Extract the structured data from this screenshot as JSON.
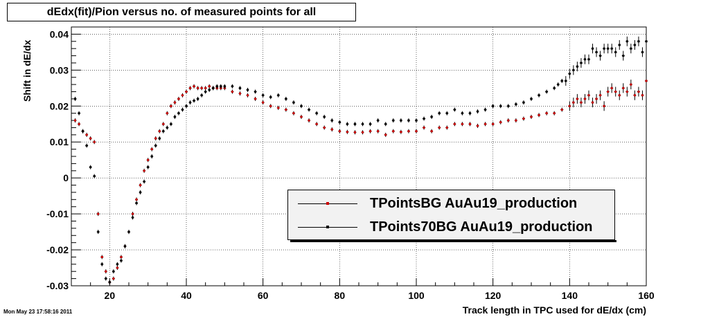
{
  "title": "dEdx(fit)/Pion versus no. of measured points for all",
  "timestamp": "Mon May 23 17:58:16 2011",
  "chart_data": {
    "type": "scatter",
    "title": "dEdx(fit)/Pion versus no. of measured points for all",
    "xlabel": "Track length in TPC used for dE/dx (cm)",
    "ylabel": "Shift in dE/dx",
    "xlim": [
      10,
      160
    ],
    "ylim": [
      -0.03,
      0.042
    ],
    "x_ticks": [
      20,
      40,
      60,
      80,
      100,
      120,
      140,
      160
    ],
    "x_tick_labels": [
      "20",
      "40",
      "60",
      "80",
      "100",
      "120",
      "140",
      "160"
    ],
    "y_ticks": [
      -0.03,
      -0.02,
      -0.01,
      0,
      0.01,
      0.02,
      0.03,
      0.04
    ],
    "y_tick_labels": [
      "-0.03",
      "-0.02",
      "-0.01",
      "0",
      "0.01",
      "0.02",
      "0.03",
      "0.04"
    ],
    "grid": true,
    "legend_position": "bottom-right",
    "series": [
      {
        "name": "TPointsBG AuAu19_production",
        "color": "#cc0000",
        "x": [
          11,
          12,
          13,
          14,
          15,
          16,
          17,
          18,
          19,
          20,
          21,
          22,
          23,
          24,
          25,
          26,
          27,
          28,
          29,
          30,
          31,
          32,
          33,
          34,
          35,
          36,
          37,
          38,
          39,
          40,
          41,
          42,
          43,
          44,
          45,
          46,
          47,
          48,
          49,
          50,
          52,
          54,
          56,
          58,
          60,
          62,
          64,
          66,
          68,
          70,
          72,
          74,
          76,
          78,
          80,
          82,
          84,
          86,
          88,
          90,
          92,
          94,
          96,
          98,
          100,
          102,
          104,
          106,
          108,
          110,
          112,
          114,
          116,
          118,
          120,
          122,
          124,
          126,
          128,
          130,
          132,
          134,
          136,
          138,
          140,
          141,
          142,
          143,
          144,
          145,
          146,
          147,
          148,
          149,
          150,
          151,
          152,
          153,
          154,
          155,
          156,
          157,
          158,
          159,
          160
        ],
        "y": [
          0.016,
          0.015,
          0.013,
          0.012,
          0.011,
          0.01,
          -0.01,
          -0.022,
          -0.026,
          -0.029,
          -0.028,
          -0.025,
          -0.022,
          -0.019,
          -0.015,
          -0.01,
          -0.006,
          -0.002,
          0.002,
          0.005,
          0.008,
          0.011,
          0.013,
          0.015,
          0.018,
          0.02,
          0.021,
          0.022,
          0.023,
          0.024,
          0.025,
          0.0255,
          0.025,
          0.025,
          0.025,
          0.0255,
          0.025,
          0.025,
          0.025,
          0.025,
          0.024,
          0.0235,
          0.023,
          0.022,
          0.021,
          0.02,
          0.0195,
          0.019,
          0.018,
          0.017,
          0.016,
          0.015,
          0.014,
          0.0135,
          0.013,
          0.0128,
          0.0127,
          0.0127,
          0.013,
          0.013,
          0.012,
          0.013,
          0.0128,
          0.013,
          0.013,
          0.014,
          0.013,
          0.014,
          0.014,
          0.015,
          0.015,
          0.015,
          0.0145,
          0.015,
          0.015,
          0.0155,
          0.016,
          0.016,
          0.0165,
          0.017,
          0.0175,
          0.018,
          0.018,
          0.019,
          0.02,
          0.021,
          0.022,
          0.021,
          0.022,
          0.023,
          0.021,
          0.022,
          0.023,
          0.02,
          0.024,
          0.025,
          0.024,
          0.023,
          0.025,
          0.024,
          0.026,
          0.023,
          0.024,
          0.023,
          0.027
        ]
      },
      {
        "name": "TPoints70BG AuAu19_production",
        "color": "#000000",
        "x": [
          11,
          12,
          13,
          14,
          15,
          16,
          17,
          18,
          19,
          20,
          21,
          22,
          23,
          24,
          25,
          26,
          27,
          28,
          29,
          30,
          31,
          32,
          33,
          34,
          35,
          36,
          37,
          38,
          39,
          40,
          41,
          42,
          43,
          44,
          45,
          46,
          47,
          48,
          49,
          50,
          52,
          54,
          56,
          58,
          60,
          62,
          64,
          66,
          68,
          70,
          72,
          74,
          76,
          78,
          80,
          82,
          84,
          86,
          88,
          90,
          92,
          94,
          96,
          98,
          100,
          102,
          104,
          106,
          108,
          110,
          112,
          114,
          116,
          118,
          120,
          122,
          124,
          126,
          128,
          130,
          132,
          134,
          136,
          137,
          138,
          139,
          140,
          141,
          142,
          143,
          144,
          145,
          146,
          147,
          148,
          149,
          150,
          151,
          152,
          153,
          154,
          155,
          156,
          157,
          158,
          159,
          160
        ],
        "y": [
          0.022,
          0.018,
          0.013,
          0.009,
          0.003,
          0.0005,
          -0.015,
          -0.024,
          -0.028,
          -0.029,
          -0.026,
          -0.024,
          -0.023,
          -0.019,
          -0.015,
          -0.011,
          -0.007,
          -0.004,
          -0.001,
          0.003,
          0.006,
          0.009,
          0.011,
          0.013,
          0.014,
          0.015,
          0.017,
          0.018,
          0.019,
          0.02,
          0.021,
          0.0215,
          0.022,
          0.023,
          0.024,
          0.0245,
          0.025,
          0.0255,
          0.0255,
          0.0255,
          0.0255,
          0.025,
          0.0245,
          0.024,
          0.023,
          0.0225,
          0.023,
          0.022,
          0.021,
          0.02,
          0.019,
          0.018,
          0.017,
          0.016,
          0.0155,
          0.015,
          0.015,
          0.015,
          0.015,
          0.016,
          0.015,
          0.016,
          0.016,
          0.016,
          0.016,
          0.0165,
          0.017,
          0.018,
          0.018,
          0.019,
          0.018,
          0.018,
          0.0185,
          0.019,
          0.02,
          0.02,
          0.02,
          0.0205,
          0.021,
          0.022,
          0.023,
          0.024,
          0.025,
          0.026,
          0.027,
          0.027,
          0.029,
          0.03,
          0.031,
          0.032,
          0.033,
          0.033,
          0.036,
          0.035,
          0.034,
          0.036,
          0.036,
          0.036,
          0.035,
          0.037,
          0.034,
          0.038,
          0.036,
          0.037,
          0.038,
          0.035,
          0.038
        ]
      }
    ]
  }
}
